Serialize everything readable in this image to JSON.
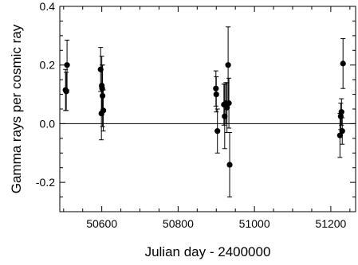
{
  "chart_data": {
    "type": "scatter",
    "title": "",
    "xlabel": "Julian day - 2400000",
    "ylabel": "Gamma rays per cosmic ray",
    "xlim": [
      50490,
      51265
    ],
    "ylim": [
      -0.3,
      0.4
    ],
    "x_ticks": [
      {
        "value": 50600,
        "label": "50600"
      },
      {
        "value": 50800,
        "label": "50800"
      },
      {
        "value": 51000,
        "label": "51000"
      },
      {
        "value": 51200,
        "label": "51200"
      }
    ],
    "y_ticks": [
      {
        "value": -0.2,
        "label": "-0.2"
      },
      {
        "value": 0.0,
        "label": "0.0"
      },
      {
        "value": 0.2,
        "label": "0.2"
      },
      {
        "value": 0.4,
        "label": "0.4"
      }
    ],
    "reference_line_y": 0.0,
    "grid": false,
    "legend": "none",
    "marker_color": "#000000",
    "points": [
      {
        "x": 50505,
        "y": 0.115,
        "err": 0.07
      },
      {
        "x": 50507,
        "y": 0.11,
        "err": 0.065
      },
      {
        "x": 50509,
        "y": 0.2,
        "err": 0.085
      },
      {
        "x": 50597,
        "y": 0.185,
        "err": 0.075
      },
      {
        "x": 50599,
        "y": 0.035,
        "err": 0.09
      },
      {
        "x": 50600,
        "y": 0.13,
        "err": 0.1
      },
      {
        "x": 50601,
        "y": 0.12,
        "err": 0.08
      },
      {
        "x": 50602,
        "y": 0.095,
        "err": 0.105
      },
      {
        "x": 50604,
        "y": 0.045,
        "err": 0.07
      },
      {
        "x": 50899,
        "y": 0.12,
        "err": 0.06
      },
      {
        "x": 50900,
        "y": 0.1,
        "err": 0.06
      },
      {
        "x": 50903,
        "y": -0.025,
        "err": 0.075
      },
      {
        "x": 50920,
        "y": 0.065,
        "err": 0.07
      },
      {
        "x": 50922,
        "y": 0.025,
        "err": 0.11
      },
      {
        "x": 50925,
        "y": 0.07,
        "err": 0.07
      },
      {
        "x": 50928,
        "y": 0.055,
        "err": 0.085
      },
      {
        "x": 50931,
        "y": 0.2,
        "err": 0.13
      },
      {
        "x": 50933,
        "y": 0.07,
        "err": 0.085
      },
      {
        "x": 50935,
        "y": -0.14,
        "err": 0.11
      },
      {
        "x": 51224,
        "y": -0.04,
        "err": 0.075
      },
      {
        "x": 51226,
        "y": 0.025,
        "err": 0.045
      },
      {
        "x": 51228,
        "y": 0.04,
        "err": 0.045
      },
      {
        "x": 51230,
        "y": -0.025,
        "err": 0.045
      },
      {
        "x": 51232,
        "y": 0.205,
        "err": 0.085
      }
    ]
  }
}
